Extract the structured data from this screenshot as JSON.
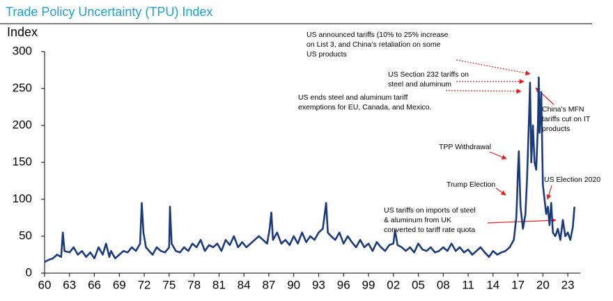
{
  "chart_data": {
    "type": "line",
    "title": "Trade Policy Uncertainty (TPU) Index",
    "y_label": "Index",
    "color": "#1b3a7d",
    "ylim": [
      0,
      300
    ],
    "yticks": [
      0,
      50,
      100,
      150,
      200,
      250,
      300
    ],
    "xlim": [
      1960,
      2024.5
    ],
    "xticks": [
      {
        "value": 1960,
        "label": "60"
      },
      {
        "value": 1963,
        "label": "63"
      },
      {
        "value": 1966,
        "label": "66"
      },
      {
        "value": 1969,
        "label": "69"
      },
      {
        "value": 1972,
        "label": "72"
      },
      {
        "value": 1975,
        "label": "75"
      },
      {
        "value": 1978,
        "label": "78"
      },
      {
        "value": 1981,
        "label": "81"
      },
      {
        "value": 1984,
        "label": "84"
      },
      {
        "value": 1987,
        "label": "87"
      },
      {
        "value": 1990,
        "label": "90"
      },
      {
        "value": 1993,
        "label": "93"
      },
      {
        "value": 1996,
        "label": "96"
      },
      {
        "value": 1999,
        "label": "99"
      },
      {
        "value": 2002,
        "label": "02"
      },
      {
        "value": 2005,
        "label": "05"
      },
      {
        "value": 2008,
        "label": "08"
      },
      {
        "value": 2011,
        "label": "11"
      },
      {
        "value": 2014,
        "label": "14"
      },
      {
        "value": 2017,
        "label": "17"
      },
      {
        "value": 2020,
        "label": "20"
      },
      {
        "value": 2023,
        "label": "23"
      }
    ],
    "grid": false,
    "x": [
      1960,
      1960.5,
      1961,
      1961.5,
      1962,
      1962.2,
      1962.4,
      1963,
      1963.5,
      1964,
      1964.5,
      1965,
      1965.5,
      1966,
      1966.5,
      1967,
      1967.4,
      1967.8,
      1968,
      1968.5,
      1969,
      1969.5,
      1970,
      1970.5,
      1971,
      1971.5,
      1971.7,
      1971.9,
      1972.2,
      1972.6,
      1973,
      1973.5,
      1974,
      1974.5,
      1975,
      1975.1,
      1975.3,
      1975.8,
      1976.3,
      1976.8,
      1977.3,
      1977.8,
      1978.3,
      1978.8,
      1979.3,
      1979.8,
      1980.3,
      1980.8,
      1981.3,
      1981.8,
      1982.3,
      1982.8,
      1983.3,
      1983.8,
      1984.3,
      1984.8,
      1985.3,
      1985.8,
      1986.3,
      1986.8,
      1987.1,
      1987.3,
      1987.5,
      1988,
      1988.5,
      1989,
      1989.5,
      1990,
      1990.5,
      1991,
      1991.5,
      1992,
      1992.5,
      1993,
      1993.5,
      1993.9,
      1994.1,
      1994.5,
      1995,
      1995.5,
      1996,
      1996.5,
      1997,
      1997.5,
      1998,
      1998.5,
      1999,
      1999.5,
      2000,
      2000.5,
      2001,
      2001.5,
      2002,
      2002.2,
      2002.5,
      2003,
      2003.5,
      2004,
      2004.5,
      2005,
      2005.5,
      2006,
      2006.5,
      2007,
      2007.5,
      2008,
      2008.5,
      2009,
      2009.5,
      2010,
      2010.5,
      2011,
      2011.5,
      2012,
      2012.5,
      2013,
      2013.5,
      2014,
      2014.5,
      2015,
      2015.5,
      2016,
      2016.5,
      2016.8,
      2016.9,
      2017,
      2017.1,
      2017.3,
      2017.6,
      2017.9,
      2018.1,
      2018.3,
      2018.45,
      2018.6,
      2018.8,
      2019,
      2019.2,
      2019.4,
      2019.5,
      2019.6,
      2019.8,
      2020,
      2020.2,
      2020.4,
      2020.6,
      2020.8,
      2021,
      2021.2,
      2021.5,
      2021.8,
      2022.1,
      2022.4,
      2022.7,
      2023,
      2023.3,
      2023.6,
      2023.8
    ],
    "values": [
      15,
      18,
      20,
      25,
      22,
      55,
      30,
      28,
      35,
      25,
      30,
      22,
      28,
      20,
      35,
      25,
      40,
      22,
      30,
      20,
      25,
      30,
      28,
      35,
      30,
      40,
      95,
      55,
      35,
      30,
      25,
      35,
      30,
      28,
      35,
      90,
      40,
      30,
      28,
      35,
      30,
      40,
      35,
      45,
      30,
      38,
      35,
      40,
      30,
      45,
      38,
      50,
      35,
      42,
      35,
      40,
      45,
      50,
      45,
      40,
      60,
      82,
      45,
      55,
      40,
      45,
      38,
      50,
      40,
      55,
      42,
      50,
      45,
      55,
      60,
      95,
      55,
      50,
      45,
      55,
      40,
      50,
      42,
      35,
      45,
      35,
      40,
      30,
      42,
      35,
      30,
      38,
      40,
      58,
      38,
      35,
      30,
      35,
      28,
      40,
      32,
      30,
      35,
      28,
      30,
      35,
      30,
      40,
      30,
      35,
      28,
      32,
      25,
      30,
      35,
      28,
      22,
      30,
      25,
      28,
      30,
      35,
      45,
      75,
      105,
      140,
      165,
      90,
      60,
      80,
      130,
      200,
      258,
      150,
      200,
      150,
      140,
      200,
      265,
      190,
      245,
      120,
      100,
      80,
      90,
      65,
      95,
      55,
      50,
      60,
      45,
      72,
      50,
      55,
      45,
      62,
      90
    ],
    "annotations": [
      {
        "lines": [
          "US announced tariffs (10% to 25% increase",
          "on List 3, and China’s retaliation on some",
          "US products"
        ]
      },
      {
        "lines": [
          "US Section 232 tariffs on",
          "steel and aluminum"
        ]
      },
      {
        "lines": [
          "US ends steel and aluminum tariff",
          "exemptions for EU, Canada, and Mexico."
        ]
      },
      {
        "lines": [
          "China’s MFN",
          "tariffs cut on IT",
          "products"
        ]
      },
      {
        "lines": [
          "TPP Withdrawal"
        ]
      },
      {
        "lines": [
          "Trump Election"
        ]
      },
      {
        "lines": [
          "US Election 2020"
        ]
      },
      {
        "lines": [
          "US tariffs on imports of steel",
          "& aluminum from UK",
          "converted to tariff rate quota"
        ]
      }
    ]
  }
}
